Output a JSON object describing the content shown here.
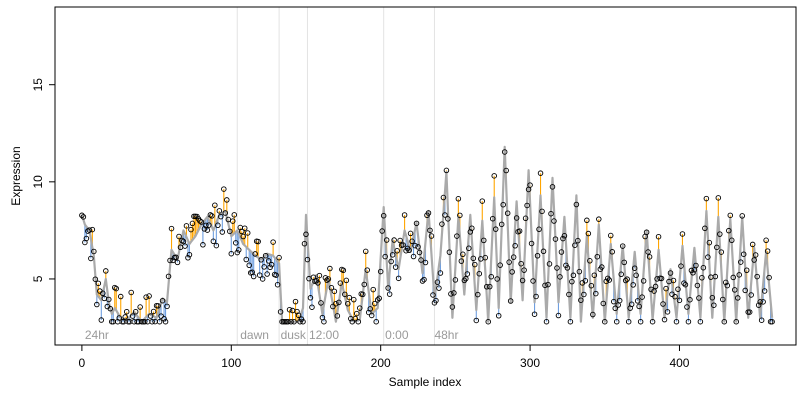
{
  "chart_data": {
    "type": "line",
    "xlabel": "Sample index",
    "ylabel": "Expression",
    "xlim": [
      -18,
      478
    ],
    "ylim": [
      1.6,
      19.0
    ],
    "x_ticks": [
      0,
      100,
      200,
      300,
      400
    ],
    "y_ticks": [
      5,
      10,
      15
    ],
    "grid": false,
    "regions": [
      {
        "label": "24hr",
        "x": 2
      },
      {
        "label": "dawn",
        "x": 106
      },
      {
        "label": "dusk",
        "x": 133
      },
      {
        "label": "12:00",
        "x": 152
      },
      {
        "label": "0:00",
        "x": 203
      },
      {
        "label": "48hr",
        "x": 236
      }
    ],
    "region_lines": [
      104,
      132,
      151,
      202,
      236
    ],
    "series": [
      {
        "color": "#aaaaaa"
      },
      {
        "color": "#ffa500"
      },
      {
        "color": "#6f9fe0"
      },
      {
        "color": "#000000"
      }
    ],
    "knots": [
      [
        0,
        8.3
      ],
      [
        2,
        7.8
      ],
      [
        5,
        7.5
      ],
      [
        8,
        6.2
      ],
      [
        10,
        4.2
      ],
      [
        13,
        3.9
      ],
      [
        16,
        5.0
      ],
      [
        18,
        3.8
      ],
      [
        20,
        3.2
      ],
      [
        22,
        3.5
      ],
      [
        26,
        3.0
      ],
      [
        30,
        2.9
      ],
      [
        35,
        3.3
      ],
      [
        40,
        2.8
      ],
      [
        45,
        3.2
      ],
      [
        50,
        3.0
      ],
      [
        54,
        4.0
      ],
      [
        57,
        3.8
      ],
      [
        60,
        6.5
      ],
      [
        64,
        6.0
      ],
      [
        68,
        7.5
      ],
      [
        72,
        6.8
      ],
      [
        76,
        7.2
      ],
      [
        80,
        7.8
      ],
      [
        84,
        8.2
      ],
      [
        88,
        7.5
      ],
      [
        92,
        8.3
      ],
      [
        96,
        8.5
      ],
      [
        100,
        7.2
      ],
      [
        104,
        7.5
      ],
      [
        108,
        6.8
      ],
      [
        112,
        6.5
      ],
      [
        116,
        6.2
      ],
      [
        120,
        6.0
      ],
      [
        124,
        6.3
      ],
      [
        128,
        6.2
      ],
      [
        132,
        5.8
      ],
      [
        134,
        2.8
      ],
      [
        138,
        2.8
      ],
      [
        145,
        2.8
      ],
      [
        148,
        3.5
      ],
      [
        150,
        8.3
      ],
      [
        153,
        4.5
      ],
      [
        157,
        5.2
      ],
      [
        161,
        3.2
      ],
      [
        165,
        5.0
      ],
      [
        170,
        2.8
      ],
      [
        174,
        4.8
      ],
      [
        178,
        3.4
      ],
      [
        182,
        2.8
      ],
      [
        186,
        2.9
      ],
      [
        190,
        5.5
      ],
      [
        194,
        3.2
      ],
      [
        198,
        3.5
      ],
      [
        202,
        8.7
      ],
      [
        205,
        4.5
      ],
      [
        208,
        7.0
      ],
      [
        212,
        5.5
      ],
      [
        216,
        7.5
      ],
      [
        220,
        6.4
      ],
      [
        224,
        7.9
      ],
      [
        228,
        5.3
      ],
      [
        232,
        8.5
      ],
      [
        236,
        4.0
      ],
      [
        240,
        6.2
      ],
      [
        244,
        10.5
      ],
      [
        248,
        3.0
      ],
      [
        252,
        8.2
      ],
      [
        256,
        4.2
      ],
      [
        260,
        8.3
      ],
      [
        264,
        3.4
      ],
      [
        268,
        8.0
      ],
      [
        272,
        2.8
      ],
      [
        276,
        9.2
      ],
      [
        279,
        3.5
      ],
      [
        283,
        11.8
      ],
      [
        287,
        3.8
      ],
      [
        291,
        9.0
      ],
      [
        295,
        3.9
      ],
      [
        299,
        10.6
      ],
      [
        303,
        3.8
      ],
      [
        307,
        9.3
      ],
      [
        311,
        3.0
      ],
      [
        315,
        10.2
      ],
      [
        319,
        3.8
      ],
      [
        323,
        8.2
      ],
      [
        327,
        3.0
      ],
      [
        331,
        9.3
      ],
      [
        334,
        2.8
      ],
      [
        338,
        7.2
      ],
      [
        342,
        3.0
      ],
      [
        346,
        7.8
      ],
      [
        350,
        2.8
      ],
      [
        354,
        6.8
      ],
      [
        358,
        3.2
      ],
      [
        362,
        6.7
      ],
      [
        366,
        3.0
      ],
      [
        370,
        6.4
      ],
      [
        374,
        3.2
      ],
      [
        378,
        7.5
      ],
      [
        382,
        2.9
      ],
      [
        386,
        6.5
      ],
      [
        390,
        3.0
      ],
      [
        394,
        5.5
      ],
      [
        398,
        3.0
      ],
      [
        402,
        6.7
      ],
      [
        406,
        3.2
      ],
      [
        410,
        6.6
      ],
      [
        414,
        3.0
      ],
      [
        418,
        8.5
      ],
      [
        422,
        3.0
      ],
      [
        426,
        8.2
      ],
      [
        430,
        2.8
      ],
      [
        434,
        8.1
      ],
      [
        438,
        2.8
      ],
      [
        442,
        8.2
      ],
      [
        446,
        3.0
      ],
      [
        450,
        6.6
      ],
      [
        454,
        3.0
      ],
      [
        458,
        6.4
      ],
      [
        462,
        3.0
      ]
    ]
  }
}
